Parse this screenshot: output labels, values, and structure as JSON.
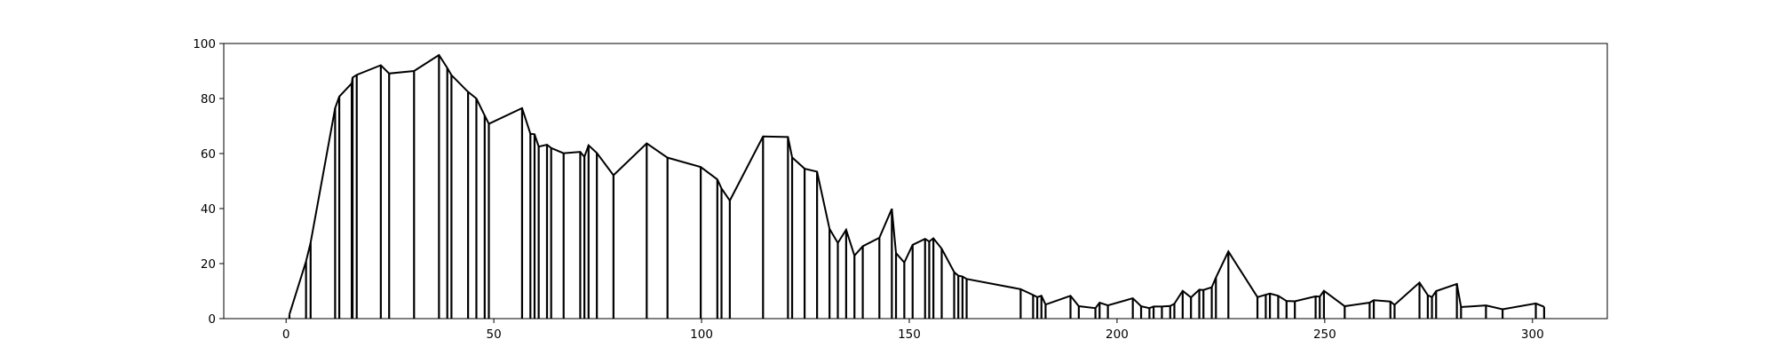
{
  "chart_data": {
    "type": "line",
    "title": "",
    "xlabel": "",
    "ylabel": "",
    "xlim": [
      -15,
      318
    ],
    "ylim": [
      0,
      100
    ],
    "grid": false,
    "x_ticks": [
      0,
      50,
      100,
      150,
      200,
      250,
      300
    ],
    "y_ticks": [
      0,
      20,
      40,
      60,
      80,
      100
    ],
    "x_tick_labels": [
      "0",
      "50",
      "100",
      "150",
      "200",
      "250",
      "300"
    ],
    "y_tick_labels": [
      "0",
      "20",
      "40",
      "60",
      "80",
      "100"
    ],
    "colors": {
      "line": "#000000",
      "axes": "#000000",
      "background": "#ffffff"
    },
    "series": [
      {
        "points": [
          [
            0.8,
            1.5
          ],
          [
            4.8,
            20.8
          ],
          [
            5.9,
            27.6
          ],
          [
            11.8,
            76.5
          ],
          [
            12.8,
            80.7
          ],
          [
            15.8,
            85.5
          ],
          [
            16.0,
            87.6
          ],
          [
            17.0,
            88.6
          ],
          [
            22.8,
            92.1
          ],
          [
            24.8,
            89.1
          ],
          [
            30.8,
            90.0
          ],
          [
            36.8,
            95.8
          ],
          [
            38.8,
            91.1
          ],
          [
            39.8,
            88.5
          ],
          [
            43.8,
            82.4
          ],
          [
            45.8,
            80.0
          ],
          [
            47.8,
            73.8
          ],
          [
            48.8,
            70.8
          ],
          [
            56.8,
            76.5
          ],
          [
            58.8,
            67.2
          ],
          [
            59.8,
            67.0
          ],
          [
            60.8,
            62.5
          ],
          [
            62.8,
            63.2
          ],
          [
            63.8,
            62.0
          ],
          [
            66.8,
            60.1
          ],
          [
            70.8,
            60.6
          ],
          [
            71.8,
            58.8
          ],
          [
            72.8,
            63.0
          ],
          [
            74.8,
            60.2
          ],
          [
            78.8,
            52.1
          ],
          [
            86.8,
            63.7
          ],
          [
            91.8,
            58.5
          ],
          [
            99.8,
            55.1
          ],
          [
            103.8,
            50.6
          ],
          [
            104.8,
            47.3
          ],
          [
            106.8,
            42.9
          ],
          [
            114.8,
            66.2
          ],
          [
            120.8,
            66.0
          ],
          [
            121.8,
            58.6
          ],
          [
            124.8,
            54.5
          ],
          [
            127.8,
            53.4
          ],
          [
            130.8,
            32.6
          ],
          [
            132.8,
            27.5
          ],
          [
            134.8,
            32.3
          ],
          [
            136.8,
            22.9
          ],
          [
            138.8,
            26.3
          ],
          [
            142.8,
            29.4
          ],
          [
            145.8,
            39.9
          ],
          [
            146.8,
            23.8
          ],
          [
            148.8,
            20.4
          ],
          [
            150.8,
            26.8
          ],
          [
            153.8,
            29.0
          ],
          [
            154.8,
            28.0
          ],
          [
            155.8,
            29.2
          ],
          [
            157.8,
            25.4
          ],
          [
            160.8,
            16.9
          ],
          [
            161.8,
            15.6
          ],
          [
            162.8,
            15.3
          ],
          [
            163.8,
            14.4
          ],
          [
            176.8,
            10.7
          ],
          [
            179.8,
            8.6
          ],
          [
            180.8,
            7.8
          ],
          [
            181.8,
            8.3
          ],
          [
            182.8,
            5.1
          ],
          [
            188.8,
            8.3
          ],
          [
            190.8,
            4.5
          ],
          [
            194.8,
            3.8
          ],
          [
            195.8,
            5.8
          ],
          [
            197.8,
            4.8
          ],
          [
            203.8,
            7.4
          ],
          [
            205.8,
            4.5
          ],
          [
            207.8,
            3.8
          ],
          [
            208.8,
            4.4
          ],
          [
            210.8,
            4.4
          ],
          [
            212.8,
            4.6
          ],
          [
            213.8,
            5.4
          ],
          [
            215.8,
            10.1
          ],
          [
            217.8,
            7.7
          ],
          [
            219.8,
            10.5
          ],
          [
            220.8,
            10.4
          ],
          [
            222.8,
            11.4
          ],
          [
            223.8,
            14.9
          ],
          [
            226.8,
            24.4
          ],
          [
            233.8,
            7.8
          ],
          [
            235.8,
            8.7
          ],
          [
            236.8,
            9.1
          ],
          [
            238.8,
            8.3
          ],
          [
            240.8,
            6.4
          ],
          [
            242.8,
            6.3
          ],
          [
            247.8,
            8.1
          ],
          [
            248.8,
            8.0
          ],
          [
            249.8,
            10.1
          ],
          [
            254.8,
            4.5
          ],
          [
            260.8,
            5.8
          ],
          [
            261.8,
            6.7
          ],
          [
            265.8,
            6.2
          ],
          [
            266.8,
            5.0
          ],
          [
            272.8,
            13.1
          ],
          [
            274.8,
            8.5
          ],
          [
            275.8,
            7.8
          ],
          [
            276.8,
            10.0
          ],
          [
            281.8,
            12.6
          ],
          [
            282.8,
            4.2
          ],
          [
            288.8,
            4.8
          ],
          [
            292.8,
            3.4
          ],
          [
            300.8,
            5.5
          ],
          [
            302.8,
            4.3
          ]
        ]
      }
    ]
  }
}
